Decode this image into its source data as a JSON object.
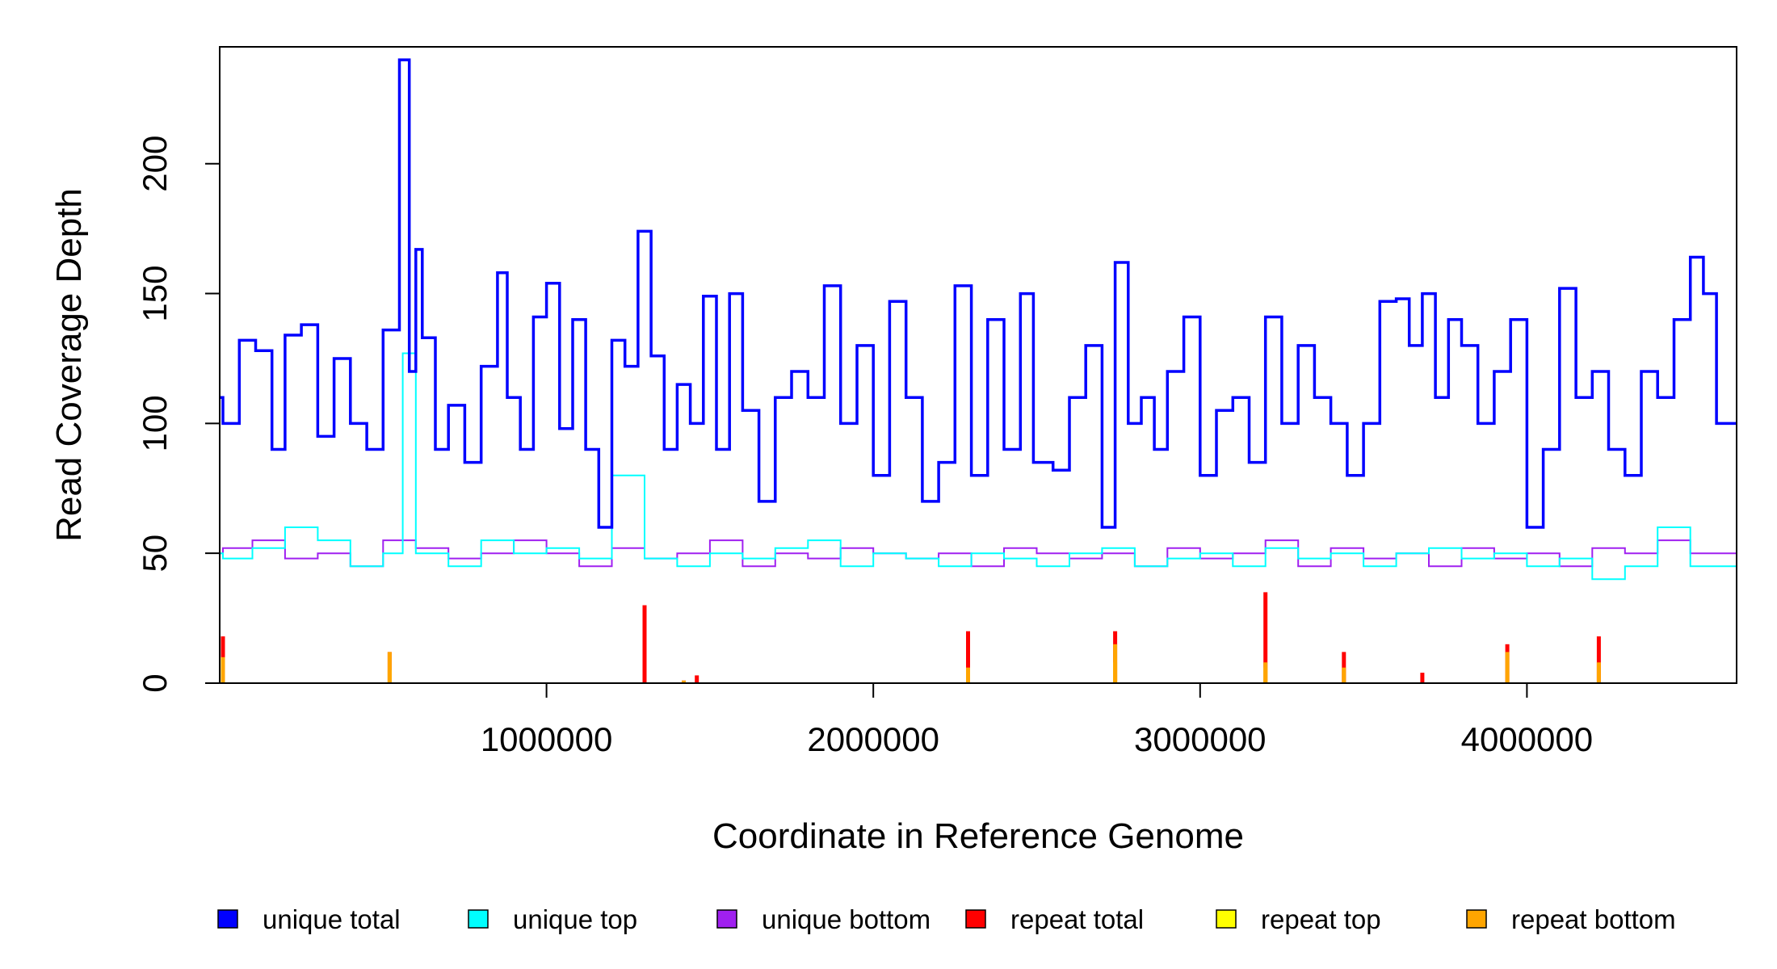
{
  "chart_data": {
    "type": "line",
    "xlabel": "Coordinate in Reference Genome",
    "ylabel": "Read Coverage Depth",
    "xlim": [
      1,
      4641652
    ],
    "ylim": [
      0,
      245
    ],
    "x_ticks": [
      1000000,
      2000000,
      3000000,
      4000000
    ],
    "x_tick_labels": [
      "1000000",
      "2000000",
      "3000000",
      "4000000"
    ],
    "y_ticks": [
      0,
      50,
      100,
      150,
      200
    ],
    "y_tick_labels": [
      "0",
      "50",
      "100",
      "150",
      "200"
    ],
    "legend_position": "bottom",
    "series": [
      {
        "name": "unique total",
        "color": "#0000ff",
        "x": [
          10000,
          60000,
          110000,
          160000,
          200000,
          250000,
          300000,
          350000,
          400000,
          450000,
          500000,
          550000,
          580000,
          600000,
          620000,
          660000,
          700000,
          750000,
          800000,
          850000,
          880000,
          920000,
          960000,
          1000000,
          1040000,
          1080000,
          1120000,
          1160000,
          1200000,
          1240000,
          1280000,
          1320000,
          1360000,
          1400000,
          1440000,
          1480000,
          1520000,
          1560000,
          1600000,
          1650000,
          1700000,
          1750000,
          1800000,
          1850000,
          1900000,
          1950000,
          2000000,
          2050000,
          2100000,
          2150000,
          2200000,
          2250000,
          2300000,
          2350000,
          2400000,
          2450000,
          2490000,
          2550000,
          2600000,
          2650000,
          2700000,
          2740000,
          2780000,
          2820000,
          2860000,
          2900000,
          2950000,
          3000000,
          3050000,
          3100000,
          3150000,
          3200000,
          3250000,
          3300000,
          3350000,
          3400000,
          3450000,
          3500000,
          3550000,
          3600000,
          3640000,
          3680000,
          3720000,
          3760000,
          3800000,
          3850000,
          3900000,
          3950000,
          4000000,
          4050000,
          4100000,
          4150000,
          4200000,
          4250000,
          4300000,
          4350000,
          4400000,
          4450000,
          4500000,
          4540000,
          4580000,
          4620000
        ],
        "y": [
          110,
          100,
          132,
          128,
          90,
          134,
          138,
          95,
          125,
          100,
          90,
          136,
          240,
          120,
          167,
          133,
          90,
          107,
          85,
          122,
          158,
          110,
          90,
          141,
          154,
          98,
          140,
          90,
          60,
          132,
          122,
          174,
          126,
          90,
          115,
          100,
          149,
          90,
          150,
          105,
          70,
          110,
          120,
          110,
          153,
          100,
          130,
          80,
          147,
          110,
          70,
          85,
          153,
          80,
          140,
          90,
          150,
          85,
          82,
          110,
          130,
          60,
          162,
          100,
          110,
          90,
          120,
          141,
          80,
          105,
          110,
          85,
          141,
          100,
          130,
          110,
          100,
          80,
          100,
          147,
          148,
          130,
          150,
          110,
          140,
          130,
          100,
          120,
          140,
          60,
          90,
          152,
          110,
          120,
          90,
          80,
          120,
          110,
          140,
          164,
          150,
          100
        ]
      },
      {
        "name": "unique top",
        "color": "#00ffff",
        "x": [
          10000,
          100000,
          200000,
          300000,
          400000,
          500000,
          560000,
          600000,
          700000,
          800000,
          900000,
          1000000,
          1100000,
          1200000,
          1300000,
          1400000,
          1500000,
          1600000,
          1700000,
          1800000,
          1900000,
          2000000,
          2100000,
          2200000,
          2300000,
          2400000,
          2500000,
          2600000,
          2700000,
          2800000,
          2900000,
          3000000,
          3100000,
          3200000,
          3300000,
          3400000,
          3500000,
          3600000,
          3700000,
          3800000,
          3900000,
          4000000,
          4100000,
          4200000,
          4300000,
          4400000,
          4500000,
          4600000
        ],
        "y": [
          50,
          48,
          52,
          60,
          55,
          45,
          50,
          127,
          50,
          45,
          55,
          50,
          52,
          48,
          80,
          48,
          45,
          50,
          48,
          52,
          55,
          45,
          50,
          48,
          45,
          50,
          48,
          45,
          50,
          52,
          45,
          48,
          50,
          45,
          52,
          48,
          50,
          45,
          50,
          52,
          48,
          50,
          45,
          48,
          40,
          45,
          60,
          45
        ]
      },
      {
        "name": "unique bottom",
        "color": "#a020f0",
        "x": [
          10000,
          100000,
          200000,
          300000,
          400000,
          500000,
          600000,
          700000,
          800000,
          900000,
          1000000,
          1100000,
          1200000,
          1300000,
          1400000,
          1500000,
          1600000,
          1700000,
          1800000,
          1900000,
          2000000,
          2100000,
          2200000,
          2300000,
          2400000,
          2500000,
          2600000,
          2700000,
          2800000,
          2900000,
          3000000,
          3100000,
          3200000,
          3300000,
          3400000,
          3500000,
          3600000,
          3700000,
          3800000,
          3900000,
          4000000,
          4100000,
          4200000,
          4300000,
          4400000,
          4500000,
          4600000
        ],
        "y": [
          50,
          52,
          55,
          48,
          50,
          45,
          55,
          52,
          48,
          50,
          55,
          50,
          45,
          52,
          48,
          50,
          55,
          45,
          50,
          48,
          52,
          50,
          48,
          50,
          45,
          52,
          50,
          48,
          50,
          45,
          52,
          48,
          50,
          55,
          45,
          52,
          48,
          50,
          45,
          52,
          48,
          50,
          45,
          52,
          50,
          55,
          50
        ]
      },
      {
        "name": "repeat total",
        "color": "#ff0000",
        "x": [
          10000,
          520000,
          1300000,
          1420000,
          1460000,
          2290000,
          2740000,
          3200000,
          3440000,
          3680000,
          3940000,
          4220000
        ],
        "y": [
          18,
          12,
          30,
          1,
          3,
          20,
          20,
          35,
          12,
          4,
          15,
          18
        ]
      },
      {
        "name": "repeat top",
        "color": "#ffff00",
        "x": [
          10000,
          520000,
          2290000,
          2740000,
          3200000
        ],
        "y": [
          6,
          5,
          4,
          8,
          6
        ]
      },
      {
        "name": "repeat bottom",
        "color": "#ffa500",
        "x": [
          10000,
          520000,
          1420000,
          2290000,
          2740000,
          3200000,
          3440000,
          3940000,
          4220000
        ],
        "y": [
          10,
          12,
          1,
          6,
          15,
          8,
          6,
          12,
          8
        ]
      }
    ]
  }
}
